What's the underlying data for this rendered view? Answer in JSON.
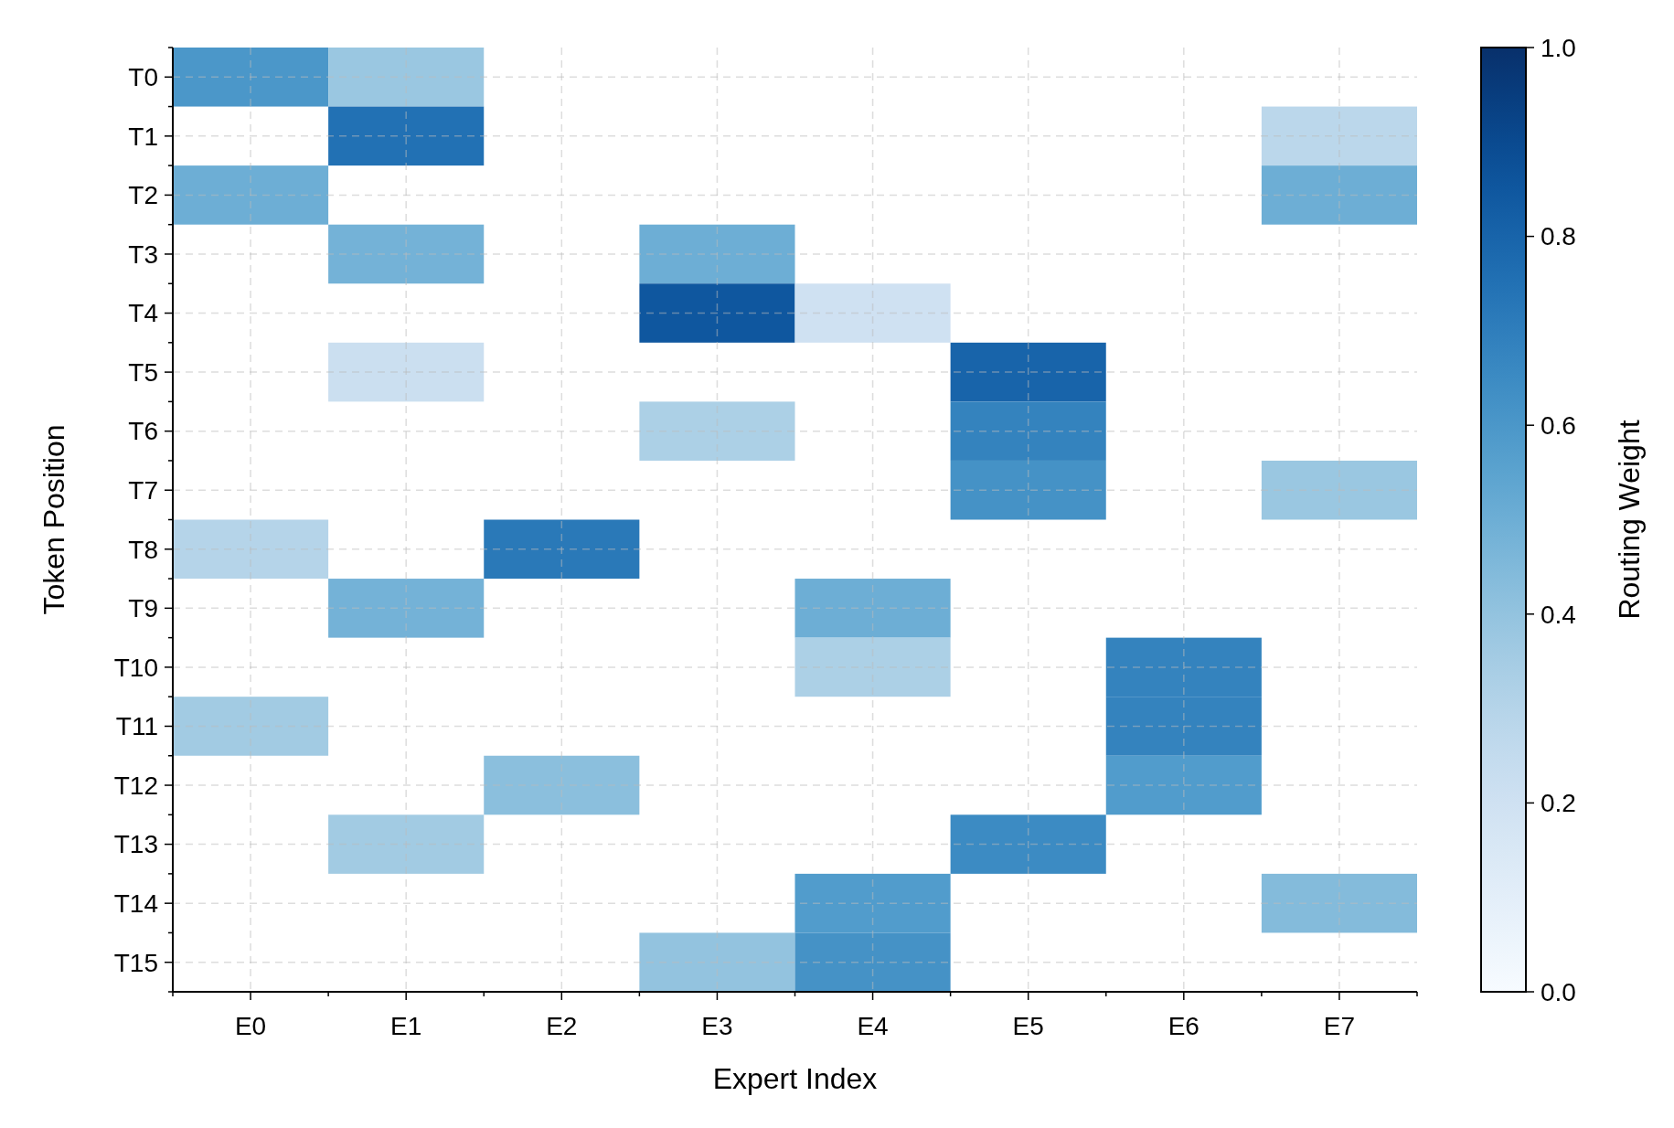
{
  "chart_data": {
    "type": "heatmap",
    "xlabel": "Expert Index",
    "ylabel": "Token Position",
    "clabel": "Routing Weight",
    "categories": [
      "E0",
      "E1",
      "E2",
      "E3",
      "E4",
      "E5",
      "E6",
      "E7"
    ],
    "y_categories": [
      "T0",
      "T1",
      "T2",
      "T3",
      "T4",
      "T5",
      "T6",
      "T7",
      "T8",
      "T9",
      "T10",
      "T11",
      "T12",
      "T13",
      "T14",
      "T15"
    ],
    "cells": [
      [
        0.6,
        0.38,
        null,
        null,
        null,
        null,
        null,
        null
      ],
      [
        null,
        0.75,
        null,
        null,
        null,
        null,
        null,
        0.28
      ],
      [
        0.5,
        null,
        null,
        null,
        null,
        null,
        null,
        0.5
      ],
      [
        null,
        0.48,
        null,
        0.5,
        null,
        null,
        null,
        null
      ],
      [
        null,
        null,
        null,
        0.85,
        0.2,
        null,
        null,
        null
      ],
      [
        null,
        0.22,
        null,
        null,
        null,
        0.8,
        null,
        null
      ],
      [
        null,
        null,
        null,
        0.33,
        null,
        0.68,
        null,
        null
      ],
      [
        null,
        null,
        null,
        null,
        null,
        0.62,
        null,
        0.38
      ],
      [
        0.3,
        null,
        0.72,
        null,
        null,
        null,
        null,
        null
      ],
      [
        null,
        0.48,
        null,
        null,
        0.5,
        null,
        null,
        null
      ],
      [
        null,
        null,
        null,
        null,
        0.33,
        null,
        0.68,
        null
      ],
      [
        0.36,
        null,
        null,
        null,
        null,
        null,
        0.68,
        null
      ],
      [
        null,
        null,
        0.42,
        null,
        null,
        null,
        0.58,
        null
      ],
      [
        null,
        0.36,
        null,
        null,
        null,
        0.65,
        null,
        null
      ],
      [
        null,
        null,
        null,
        null,
        0.58,
        null,
        null,
        0.44
      ],
      [
        null,
        null,
        null,
        0.4,
        0.62,
        null,
        null,
        null
      ]
    ],
    "clim": [
      0,
      1
    ],
    "cticks": [
      {
        "value": 0,
        "label": "0.0"
      },
      {
        "value": 0.2,
        "label": "0.2"
      },
      {
        "value": 0.4,
        "label": "0.4"
      },
      {
        "value": 0.6,
        "label": "0.6"
      },
      {
        "value": 0.8,
        "label": "0.8"
      },
      {
        "value": 1,
        "label": "1.0"
      }
    ],
    "grid": true
  }
}
